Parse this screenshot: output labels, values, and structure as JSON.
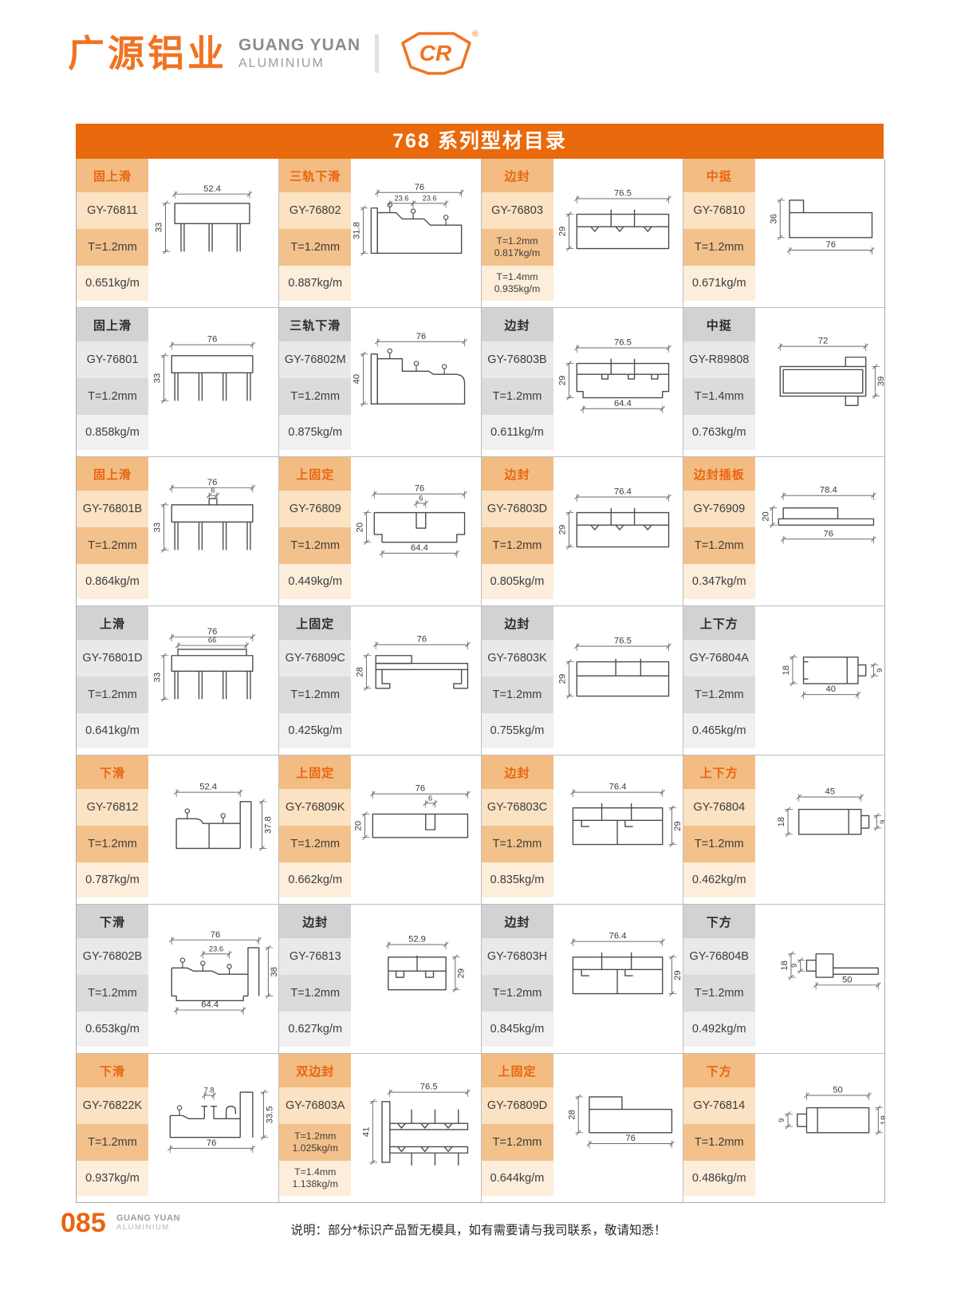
{
  "brand": {
    "cn": "广源铝业",
    "en1": "GUANG YUAN",
    "en2": "ALUMINIUM",
    "mark": "CR",
    "registered": "®"
  },
  "title": "768 系列型材目录",
  "colors": {
    "accent": "#E9690D",
    "category_text": "#E8650F",
    "band_orange": "#F3BC82",
    "band_gray": "#D2D2D2"
  },
  "rows": [
    {
      "theme": "orange",
      "cells": [
        {
          "category": "固上滑",
          "model": "GY-76811",
          "t": "T=1.2mm",
          "kg": "0.651kg/m",
          "shape": "rail3",
          "dims": {
            "top": "52.4",
            "left": "33"
          }
        },
        {
          "category": "三轨下滑",
          "model": "GY-76802",
          "t": "T=1.2mm",
          "kg": "0.887kg/m",
          "shape": "trislide",
          "dims": {
            "top": "76",
            "mid1": "23.6",
            "mid2": "23.6",
            "left": "31.8"
          }
        },
        {
          "category": "边封",
          "model": "GY-76803",
          "t": "T=1.2mm\n0.817kg/m",
          "kg": "T=1.4mm\n0.935kg/m",
          "shape": "edgeseal",
          "dims": {
            "top": "76.5",
            "left": "29"
          }
        },
        {
          "category": "中挺",
          "model": "GY-76810",
          "t": "T=1.2mm",
          "kg": "0.671kg/m",
          "shape": "mullion",
          "dims": {
            "left": "36",
            "bottom": "76"
          }
        }
      ]
    },
    {
      "theme": "gray",
      "cells": [
        {
          "category": "固上滑",
          "model": "GY-76801",
          "t": "T=1.2mm",
          "kg": "0.858kg/m",
          "shape": "rail4",
          "dims": {
            "top": "76",
            "left": "33"
          }
        },
        {
          "category": "三轨下滑",
          "model": "GY-76802M",
          "t": "T=1.2mm",
          "kg": "0.875kg/m",
          "shape": "trislide2",
          "dims": {
            "top": "76",
            "left": "40"
          }
        },
        {
          "category": "边封",
          "model": "GY-76803B",
          "t": "T=1.2mm",
          "kg": "0.611kg/m",
          "shape": "edgeseal2",
          "dims": {
            "top": "76.5",
            "left": "29",
            "bottom": "64.4"
          }
        },
        {
          "category": "中挺",
          "model": "GY-R89808",
          "t": "T=1.4mm",
          "kg": "0.763kg/m",
          "shape": "mullion2",
          "dims": {
            "top": "72",
            "right": "39"
          }
        }
      ]
    },
    {
      "theme": "orange",
      "cells": [
        {
          "category": "固上滑",
          "model": "GY-76801B",
          "t": "T=1.2mm",
          "kg": "0.864kg/m",
          "shape": "rail4tab",
          "dims": {
            "top": "76",
            "top2": "6",
            "left": "33"
          }
        },
        {
          "category": "上固定",
          "model": "GY-76809",
          "t": "T=1.2mm",
          "kg": "0.449kg/m",
          "shape": "fixtop",
          "dims": {
            "top": "76",
            "top2": "6",
            "left": "20",
            "bottom": "64.4"
          }
        },
        {
          "category": "边封",
          "model": "GY-76803D",
          "t": "T=1.2mm",
          "kg": "0.805kg/m",
          "shape": "edgeseal",
          "dims": {
            "top": "76.4",
            "left": "29"
          }
        },
        {
          "category": "边封插板",
          "model": "GY-76909",
          "t": "T=1.2mm",
          "kg": "0.347kg/m",
          "shape": "insertplate",
          "dims": {
            "top": "78.4",
            "left": "20",
            "bottom": "76"
          }
        }
      ]
    },
    {
      "theme": "gray",
      "cells": [
        {
          "category": "上滑",
          "model": "GY-76801D",
          "t": "T=1.2mm",
          "kg": "0.641kg/m",
          "shape": "rail4inner",
          "dims": {
            "top": "76",
            "top2": "66",
            "left": "33"
          }
        },
        {
          "category": "上固定",
          "model": "GY-76809C",
          "t": "T=1.2mm",
          "kg": "0.425kg/m",
          "shape": "uchannel",
          "dims": {
            "top": "76",
            "left": "28"
          }
        },
        {
          "category": "边封",
          "model": "GY-76803K",
          "t": "T=1.2mm",
          "kg": "0.755kg/m",
          "shape": "edgeseal3",
          "dims": {
            "top": "76.5",
            "left": "29"
          }
        },
        {
          "category": "上下方",
          "model": "GY-76804A",
          "t": "T=1.2mm",
          "kg": "0.465kg/m",
          "shape": "smallbox",
          "dims": {
            "left": "18",
            "bottom": "40",
            "right": "9"
          }
        }
      ]
    },
    {
      "theme": "orange",
      "cells": [
        {
          "category": "下滑",
          "model": "GY-76812",
          "t": "T=1.2mm",
          "kg": "0.787kg/m",
          "shape": "downslide",
          "dims": {
            "top": "52.4",
            "right": "37.8"
          }
        },
        {
          "category": "上固定",
          "model": "GY-76809K",
          "t": "T=1.2mm",
          "kg": "0.662kg/m",
          "shape": "fixtop2",
          "dims": {
            "top": "76",
            "top2": "6",
            "left": "20"
          }
        },
        {
          "category": "边封",
          "model": "GY-76803C",
          "t": "T=1.2mm",
          "kg": "0.835kg/m",
          "shape": "edgeseal4",
          "dims": {
            "top": "76.4",
            "right": "29"
          }
        },
        {
          "category": "上下方",
          "model": "GY-76804",
          "t": "T=1.2mm",
          "kg": "0.462kg/m",
          "shape": "smallbox2",
          "dims": {
            "top": "45",
            "left": "18",
            "right": "9"
          }
        }
      ]
    },
    {
      "theme": "gray",
      "cells": [
        {
          "category": "下滑",
          "model": "GY-76802B",
          "t": "T=1.2mm",
          "kg": "0.653kg/m",
          "shape": "downslide2",
          "dims": {
            "top": "76",
            "mid1": "23.6",
            "right": "38",
            "bottom": "64.4"
          }
        },
        {
          "category": "边封",
          "model": "GY-76813",
          "t": "T=1.2mm",
          "kg": "0.627kg/m",
          "shape": "edgesmall",
          "dims": {
            "top": "52.9",
            "right": "29"
          }
        },
        {
          "category": "边封",
          "model": "GY-76803H",
          "t": "T=1.2mm",
          "kg": "0.845kg/m",
          "shape": "edgeseal4",
          "dims": {
            "top": "76.4",
            "right": "29"
          }
        },
        {
          "category": "下方",
          "model": "GY-76804B",
          "t": "T=1.2mm",
          "kg": "0.492kg/m",
          "shape": "smallbox3",
          "dims": {
            "left": "18",
            "left2": "9",
            "bottom": "50"
          }
        }
      ]
    },
    {
      "theme": "orange",
      "cells": [
        {
          "category": "下滑",
          "model": "GY-76822K",
          "t": "T=1.2mm",
          "kg": "0.937kg/m",
          "shape": "downslide3",
          "dims": {
            "top": "7.8",
            "right": "33.5",
            "bottom": "76"
          }
        },
        {
          "category": "双边封",
          "model": "GY-76803A",
          "t": "T=1.2mm\n1.025kg/m",
          "kg": "T=1.4mm\n1.138kg/m",
          "shape": "doubleseal",
          "dims": {
            "top": "76.5",
            "left": "41"
          }
        },
        {
          "category": "上固定",
          "model": "GY-76809D",
          "t": "T=1.2mm",
          "kg": "0.644kg/m",
          "shape": "uchannel2",
          "dims": {
            "left": "28",
            "bottom": "76"
          }
        },
        {
          "category": "下方",
          "model": "GY-76814",
          "t": "T=1.2mm",
          "kg": "0.486kg/m",
          "shape": "smallbox4",
          "dims": {
            "top": "50",
            "left": "9",
            "right": "18"
          }
        }
      ]
    }
  ],
  "footer": {
    "page": "085",
    "brand1": "GUANG YUAN",
    "brand2": "ALUMINIUM",
    "note": "说明：部分*标识产品暂无模具，如有需要请与我司联系，敬请知悉！"
  }
}
